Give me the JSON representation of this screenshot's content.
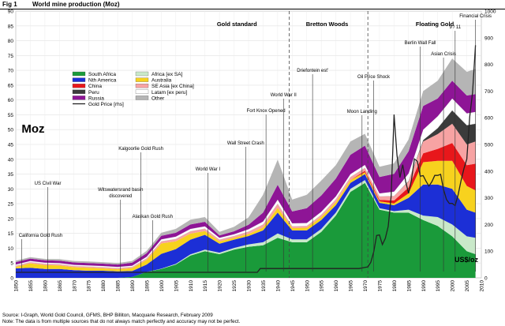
{
  "figure": {
    "label": "Fig 1",
    "title": "World mine production (Moz)",
    "source": "Source: I-Graph, World Gold Council, GFMS, BHP Billiton, Macquarie Research, February 2009",
    "note": "Note: The data is from multiple sources that do not always match perfectly and accuracy may not be perfect."
  },
  "chart_data": {
    "type": "area",
    "unit_label": "Moz",
    "right_axis_label": "US$/oz",
    "xlim": [
      1850,
      2010
    ],
    "ylim": [
      0,
      90
    ],
    "y2lim": [
      0,
      1000
    ],
    "x_ticks": [
      1850,
      1855,
      1860,
      1865,
      1870,
      1875,
      1880,
      1885,
      1890,
      1895,
      1900,
      1905,
      1910,
      1915,
      1920,
      1925,
      1930,
      1935,
      1940,
      1945,
      1950,
      1955,
      1960,
      1965,
      1970,
      1975,
      1980,
      1985,
      1990,
      1995,
      2000,
      2005,
      2010
    ],
    "y_ticks": [
      0,
      5,
      10,
      15,
      20,
      25,
      30,
      35,
      40,
      45,
      50,
      55,
      60,
      65,
      70,
      75,
      80,
      85,
      90
    ],
    "y2_ticks": [
      0,
      100,
      200,
      300,
      400,
      500,
      600,
      700,
      800,
      900,
      1000
    ],
    "grid": true,
    "legend_position": "upper-left",
    "x": [
      1850,
      1855,
      1860,
      1865,
      1870,
      1875,
      1880,
      1885,
      1890,
      1895,
      1900,
      1905,
      1910,
      1915,
      1920,
      1925,
      1930,
      1935,
      1940,
      1945,
      1950,
      1955,
      1960,
      1965,
      1970,
      1975,
      1980,
      1985,
      1990,
      1995,
      2000,
      2005,
      2008
    ],
    "series": [
      {
        "name": "South Africa",
        "color": "#1a9a3a",
        "values": [
          0,
          0,
          0,
          0,
          0,
          0,
          0,
          0,
          0.3,
          2,
          3,
          4.5,
          7.5,
          9,
          8,
          9.5,
          10.5,
          11,
          13.5,
          12,
          12,
          15.5,
          21,
          29,
          32,
          23,
          22,
          22,
          19.5,
          17.5,
          14,
          9,
          8
        ]
      },
      {
        "name": "Africa [ex SA]",
        "color": "#c9e9c9",
        "values": [
          0,
          0,
          0,
          0,
          0,
          0,
          0,
          0,
          0,
          0,
          0.1,
          0.2,
          0.4,
          0.5,
          0.5,
          0.6,
          0.8,
          1,
          1.5,
          1,
          1,
          1,
          1,
          1,
          1,
          0.5,
          0.5,
          1,
          1.5,
          3,
          4,
          5,
          5.5
        ]
      },
      {
        "name": "Nth America",
        "color": "#1c2fd6",
        "values": [
          3.2,
          3.4,
          3,
          3,
          2.6,
          2.4,
          2.4,
          2.2,
          2,
          2.5,
          5,
          5,
          5,
          5,
          3,
          2.8,
          2.8,
          4,
          7,
          3,
          3,
          3,
          2.5,
          2,
          2,
          1.8,
          2,
          4,
          10.5,
          11,
          12,
          9,
          8.5
        ]
      },
      {
        "name": "Australia",
        "color": "#f7d21e",
        "values": [
          0.5,
          1.5,
          1.3,
          1.2,
          1,
          1,
          0.8,
          0.7,
          1,
          1.6,
          3.5,
          2.6,
          2,
          1.3,
          0.8,
          0.6,
          0.7,
          1,
          1.6,
          0.8,
          0.9,
          1,
          1,
          1,
          0.6,
          0.5,
          0.6,
          1.5,
          7.5,
          8,
          9.5,
          8,
          7.5
        ]
      },
      {
        "name": "China",
        "color": "#e8171b",
        "values": [
          0,
          0,
          0,
          0,
          0,
          0,
          0,
          0,
          0,
          0,
          0,
          0,
          0,
          0,
          0,
          0,
          0,
          0,
          0,
          0,
          0,
          0,
          0,
          0,
          0.5,
          0.5,
          1,
          2,
          3,
          4,
          6,
          7,
          9
        ]
      },
      {
        "name": "SE Asia [ex China]",
        "color": "#f7a3a3",
        "values": [
          0.4,
          0.4,
          0.4,
          0.4,
          0.4,
          0.4,
          0.4,
          0.4,
          0.4,
          0.5,
          0.7,
          0.8,
          0.8,
          0.8,
          0.6,
          0.6,
          0.8,
          1,
          1.4,
          0.6,
          0.6,
          0.8,
          1,
          1,
          1,
          1.2,
          1.5,
          2,
          4,
          5,
          6.5,
          7,
          7.5
        ]
      },
      {
        "name": "Peru",
        "color": "#3b3b3b",
        "values": [
          0,
          0,
          0,
          0,
          0,
          0,
          0,
          0,
          0,
          0,
          0,
          0,
          0,
          0,
          0,
          0,
          0,
          0,
          0,
          0,
          0,
          0,
          0,
          0,
          0,
          0,
          0,
          0.2,
          0.5,
          2,
          4.5,
          6.5,
          6
        ]
      },
      {
        "name": "Latam [ex peru]",
        "color": "#ffffff",
        "values": [
          0.4,
          0.4,
          0.4,
          0.4,
          0.4,
          0.4,
          0.4,
          0.4,
          0.4,
          0.5,
          0.7,
          0.8,
          0.8,
          0.8,
          0.6,
          0.6,
          0.8,
          1,
          1.4,
          1,
          1,
          1,
          1,
          1,
          1,
          1,
          1.5,
          2.5,
          3.5,
          4,
          4,
          4,
          4
        ]
      },
      {
        "name": "Russia",
        "color": "#8e1596",
        "values": [
          0.8,
          0.8,
          0.8,
          0.8,
          0.8,
          0.8,
          0.8,
          0.8,
          1,
          1.2,
          1.2,
          1.3,
          1.5,
          1.5,
          0.8,
          1,
          1.5,
          3,
          5,
          4,
          5,
          5.5,
          6,
          6.5,
          6.5,
          5.5,
          6,
          7.5,
          8,
          6,
          6,
          6,
          6
        ]
      },
      {
        "name": "Other",
        "color": "#b5b5b5",
        "values": [
          0.5,
          0.5,
          0.5,
          0.5,
          0.5,
          0.5,
          0.5,
          0.5,
          0.6,
          0.8,
          1,
          1.3,
          1.6,
          1.6,
          1.2,
          1.5,
          2.5,
          6,
          8.5,
          4,
          4.5,
          5,
          4.5,
          4.5,
          4,
          3.5,
          3.5,
          4,
          5,
          6,
          7.5,
          8,
          8.5
        ]
      }
    ],
    "price_series": {
      "name": "Gold Price [rhs]",
      "color": "#222222",
      "points": [
        [
          1850,
          20.7
        ],
        [
          1870,
          20.7
        ],
        [
          1880,
          20.7
        ],
        [
          1933,
          20.7
        ],
        [
          1934,
          35
        ],
        [
          1968,
          35
        ],
        [
          1971,
          41
        ],
        [
          1972,
          58
        ],
        [
          1973,
          97
        ],
        [
          1974,
          159
        ],
        [
          1975,
          161
        ],
        [
          1976,
          125
        ],
        [
          1977,
          148
        ],
        [
          1978,
          193
        ],
        [
          1979,
          306
        ],
        [
          1980,
          612
        ],
        [
          1981,
          460
        ],
        [
          1982,
          376
        ],
        [
          1983,
          424
        ],
        [
          1984,
          361
        ],
        [
          1985,
          317
        ],
        [
          1986,
          368
        ],
        [
          1987,
          446
        ],
        [
          1988,
          437
        ],
        [
          1989,
          381
        ],
        [
          1990,
          383
        ],
        [
          1991,
          362
        ],
        [
          1992,
          344
        ],
        [
          1993,
          360
        ],
        [
          1994,
          384
        ],
        [
          1995,
          384
        ],
        [
          1996,
          388
        ],
        [
          1997,
          331
        ],
        [
          1998,
          294
        ],
        [
          1999,
          279
        ],
        [
          2000,
          279
        ],
        [
          2001,
          271
        ],
        [
          2002,
          310
        ],
        [
          2003,
          363
        ],
        [
          2004,
          409
        ],
        [
          2005,
          445
        ],
        [
          2006,
          604
        ],
        [
          2007,
          695
        ],
        [
          2008,
          872
        ]
      ]
    },
    "period_labels": [
      {
        "text": "Gold standard",
        "x": 1926
      },
      {
        "text": "Bretton Woods",
        "x": 1957
      },
      {
        "text": "Floating Gold",
        "x": 1994
      }
    ],
    "period_dividers": [
      1944,
      1971
    ],
    "annotations": [
      {
        "text": "California Gold Rush",
        "x": 1851
      },
      {
        "text": "US Civil War",
        "x": 1861
      },
      {
        "text": "Witswatersrand basin discovered",
        "x": 1886
      },
      {
        "text": "Alaskan Gold Rush",
        "x": 1897
      },
      {
        "text": "Kalgoorlie Gold Rush",
        "x": 1893
      },
      {
        "text": "World War I",
        "x": 1916
      },
      {
        "text": "Wall Street Crash",
        "x": 1929
      },
      {
        "text": "Fort Knox Opened",
        "x": 1936
      },
      {
        "text": "World War II",
        "x": 1942
      },
      {
        "text": "Driefontein est'",
        "x": 1952
      },
      {
        "text": "Moon Landing",
        "x": 1969
      },
      {
        "text": "Oil Price Shock",
        "x": 1973
      },
      {
        "text": "Berlin Wall Fall",
        "x": 1989
      },
      {
        "text": "Asian Crisis",
        "x": 1997
      },
      {
        "text": "9 / 11",
        "x": 2001
      },
      {
        "text": "Financial Crisis",
        "x": 2008
      }
    ]
  }
}
